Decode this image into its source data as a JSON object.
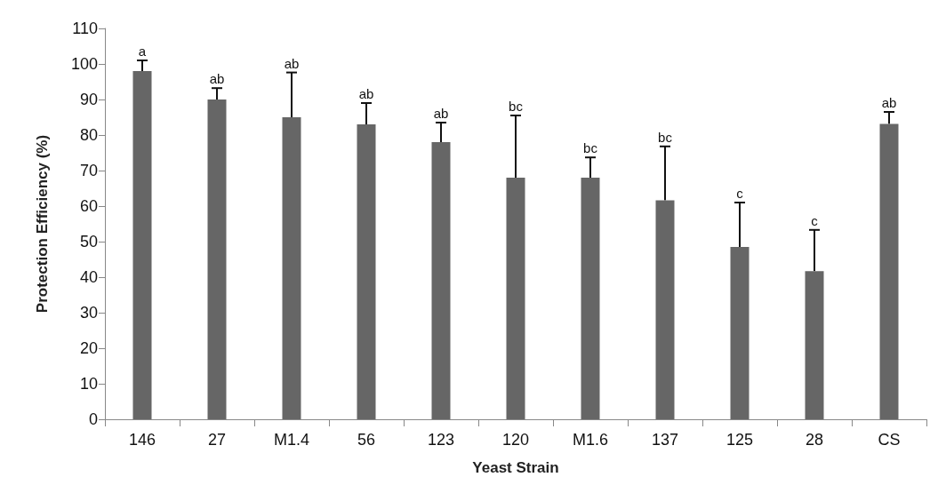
{
  "chart_data": {
    "type": "bar",
    "xlabel": "Yeast Strain",
    "ylabel": "Protection Efficiency (%)",
    "categories": [
      "146",
      "27",
      "M1.4",
      "56",
      "123",
      "120",
      "M1.6",
      "137",
      "125",
      "28",
      "CS"
    ],
    "values": [
      98,
      90,
      85,
      83,
      78,
      68,
      68,
      61.6,
      48.5,
      41.7,
      83.1
    ],
    "errors": [
      3,
      3.2,
      12.6,
      6,
      5.5,
      17.5,
      5.7,
      15.2,
      12.5,
      11.6,
      3.4
    ],
    "color": "#666666",
    "ylim": [
      0,
      110
    ],
    "yticks": [
      0,
      10,
      20,
      30,
      40,
      50,
      60,
      70,
      80,
      90,
      100,
      110
    ],
    "grid": false,
    "annotations": [
      {
        "text": "a",
        "x": "146",
        "y": 101
      },
      {
        "text": "ab",
        "x": "27",
        "y": 93.2
      },
      {
        "text": "ab",
        "x": "M1.4",
        "y": 97.6
      },
      {
        "text": "ab",
        "x": "56",
        "y": 89
      },
      {
        "text": "ab",
        "x": "123",
        "y": 83.5
      },
      {
        "text": "bc",
        "x": "120",
        "y": 85.5
      },
      {
        "text": "bc",
        "x": "M1.6",
        "y": 73.7
      },
      {
        "text": "bc",
        "x": "137",
        "y": 76.8
      },
      {
        "text": "c",
        "x": "125",
        "y": 61
      },
      {
        "text": "c",
        "x": "28",
        "y": 53.3
      },
      {
        "text": "ab",
        "x": "CS",
        "y": 86.5
      }
    ]
  }
}
